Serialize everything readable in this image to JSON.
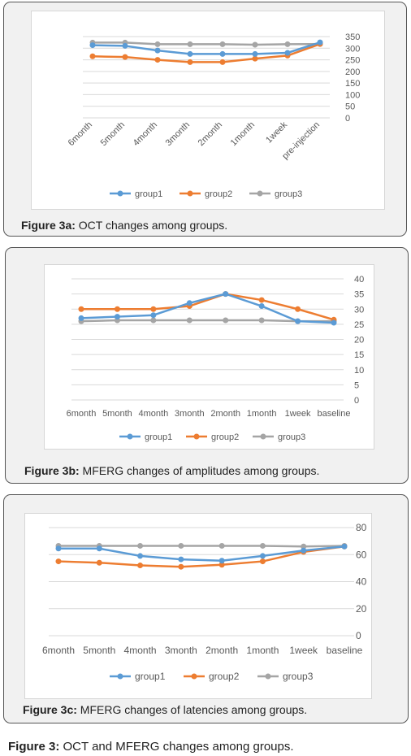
{
  "colors": {
    "group1": "#5b9bd5",
    "group2": "#ed7d31",
    "group3": "#a5a5a5",
    "grid": "#d9d9d9",
    "text": "#595959"
  },
  "captions": {
    "fig3a": {
      "label": "Figure 3a:",
      "text": " OCT changes among groups."
    },
    "fig3b": {
      "label": "Figure 3b:",
      "text": " MFERG changes of amplitudes among groups."
    },
    "fig3c": {
      "label": "Figure 3c:",
      "text": " MFERG changes of latencies among groups."
    },
    "fig3": {
      "label": "Figure 3:",
      "text": " OCT and MFERG changes among groups."
    }
  },
  "chart_data": [
    {
      "id": "fig3a",
      "type": "line",
      "categories": [
        "6month",
        "5month",
        "4month",
        "3month",
        "2month",
        "1month",
        "1week",
        "pre-injection"
      ],
      "ylim": [
        0,
        350
      ],
      "yticks": [
        0,
        50,
        100,
        150,
        200,
        250,
        300,
        350
      ],
      "grid": true,
      "legend": "bottom",
      "series": [
        {
          "name": "group1",
          "color": "#5b9bd5",
          "values": [
            313,
            310,
            290,
            275,
            275,
            275,
            280,
            325
          ]
        },
        {
          "name": "group2",
          "color": "#ed7d31",
          "values": [
            265,
            262,
            250,
            240,
            240,
            255,
            268,
            318
          ]
        },
        {
          "name": "group3",
          "color": "#a5a5a5",
          "values": [
            324,
            324,
            317,
            317,
            317,
            315,
            317,
            318
          ]
        }
      ]
    },
    {
      "id": "fig3b",
      "type": "line",
      "categories": [
        "6month",
        "5month",
        "4month",
        "3month",
        "2month",
        "1month",
        "1week",
        "baseline"
      ],
      "ylim": [
        0,
        40
      ],
      "yticks": [
        0,
        5,
        10,
        15,
        20,
        25,
        30,
        35,
        40
      ],
      "grid": true,
      "legend": "bottom",
      "series": [
        {
          "name": "group1",
          "color": "#5b9bd5",
          "values": [
            27,
            27.5,
            28,
            32,
            35,
            31,
            26,
            25.5
          ]
        },
        {
          "name": "group2",
          "color": "#ed7d31",
          "values": [
            30,
            30,
            30,
            31,
            35,
            33,
            30,
            26.5
          ]
        },
        {
          "name": "group3",
          "color": "#a5a5a5",
          "values": [
            26,
            26.3,
            26.3,
            26.3,
            26.3,
            26.3,
            26,
            26
          ]
        }
      ]
    },
    {
      "id": "fig3c",
      "type": "line",
      "categories": [
        "6month",
        "5month",
        "4month",
        "3month",
        "2month",
        "1month",
        "1week",
        "baseline"
      ],
      "ylim": [
        0,
        80
      ],
      "yticks": [
        0,
        20,
        40,
        60,
        80
      ],
      "grid": true,
      "legend": "bottom",
      "series": [
        {
          "name": "group1",
          "color": "#5b9bd5",
          "values": [
            64.5,
            64.5,
            59,
            56.5,
            55.5,
            59,
            63,
            66
          ]
        },
        {
          "name": "group2",
          "color": "#ed7d31",
          "values": [
            55,
            54,
            52,
            51,
            52.5,
            55,
            62,
            66
          ]
        },
        {
          "name": "group3",
          "color": "#a5a5a5",
          "values": [
            66.5,
            66.5,
            66.5,
            66.5,
            66.5,
            66.5,
            66,
            66.5
          ]
        }
      ]
    }
  ]
}
